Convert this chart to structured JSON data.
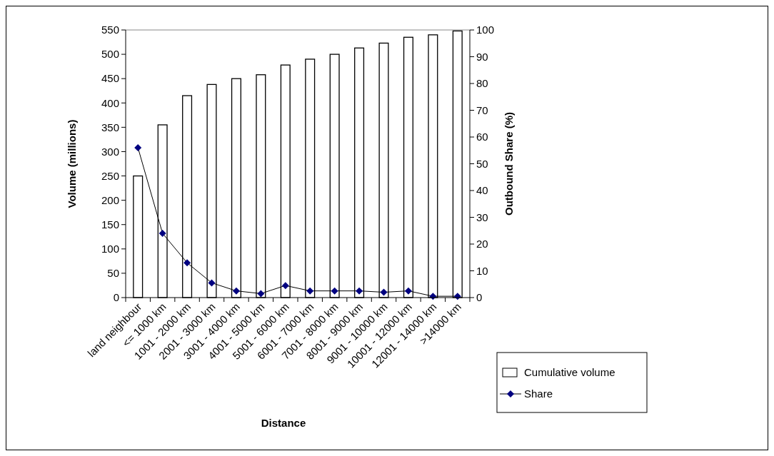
{
  "chart_data": {
    "type": "bar",
    "xlabel": "Distance",
    "ylabel": "Volume (millions)",
    "y2label": "Outbound Share (%)",
    "categories": [
      "land neighbour",
      "<= 1000 km",
      "1001 - 2000 km",
      "2001 - 3000 km",
      "3001 - 4000 km",
      "4001 - 5000 km",
      "5001 - 6000 km",
      "6001 - 7000 km",
      "7001 - 8000 km",
      "8001 - 9000 km",
      "9001 - 10000 km",
      "10001 - 12000 km",
      "12001 - 14000 km",
      ">14000 km"
    ],
    "series": [
      {
        "name": "Cumulative volume",
        "color": "#ffffff",
        "values": [
          250,
          355,
          415,
          438,
          450,
          458,
          478,
          490,
          500,
          513,
          523,
          535,
          540,
          548
        ]
      },
      {
        "name": "Share",
        "type": "line",
        "axis": "y2",
        "color": "#000080",
        "marker": "diamond",
        "values": [
          56,
          24,
          13,
          5.5,
          2.5,
          1.5,
          4.5,
          2.5,
          2.5,
          2.5,
          2,
          2.5,
          0.5,
          0.5
        ]
      }
    ],
    "ylim": [
      0,
      550
    ],
    "yticks": [
      0,
      50,
      100,
      150,
      200,
      250,
      300,
      350,
      400,
      450,
      500,
      550
    ],
    "y2lim": [
      0,
      100
    ],
    "y2ticks": [
      0,
      10,
      20,
      30,
      40,
      50,
      60,
      70,
      80,
      90,
      100
    ],
    "legend": "right",
    "grid": false
  }
}
